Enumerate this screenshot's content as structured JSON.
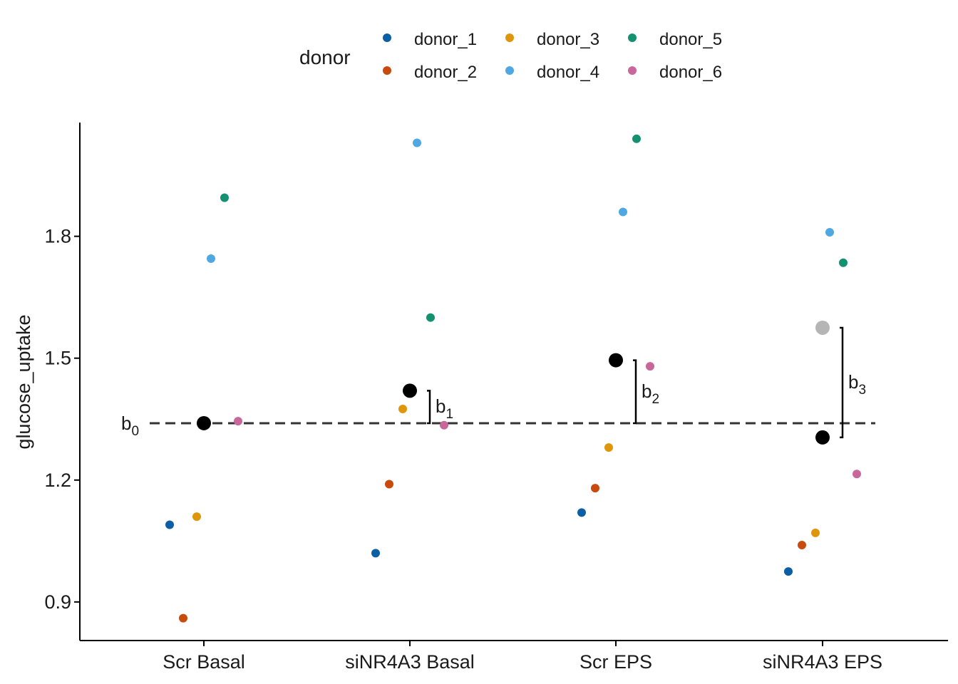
{
  "chart_data": {
    "type": "scatter",
    "title": "",
    "xlabel": "",
    "ylabel": "glucose_uptake",
    "ylim": [
      0.805,
      2.08
    ],
    "yticks": [
      0.9,
      1.2,
      1.5,
      1.8
    ],
    "ytick_labels": [
      "0.9",
      "1.2",
      "1.5",
      "1.8"
    ],
    "categories": [
      "Scr Basal",
      "siNR4A3 Basal",
      "Scr EPS",
      "siNR4A3 EPS"
    ],
    "grid": false,
    "legend": {
      "title": "donor",
      "position": "top"
    },
    "series": [
      {
        "name": "donor_1",
        "color": "#0b5fa5",
        "values": [
          1.09,
          1.02,
          1.12,
          0.975
        ]
      },
      {
        "name": "donor_2",
        "color": "#c84a0c",
        "values": [
          0.86,
          1.19,
          1.18,
          1.04
        ]
      },
      {
        "name": "donor_3",
        "color": "#e0960a",
        "values": [
          1.11,
          1.375,
          1.28,
          1.07
        ]
      },
      {
        "name": "donor_4",
        "color": "#4fa8e2",
        "values": [
          1.745,
          2.03,
          1.86,
          1.81
        ]
      },
      {
        "name": "donor_5",
        "color": "#139170",
        "values": [
          1.895,
          1.6,
          2.04,
          1.735
        ]
      },
      {
        "name": "donor_6",
        "color": "#c7679a",
        "values": [
          1.345,
          1.335,
          1.48,
          1.215
        ]
      }
    ],
    "group_means": {
      "values": [
        1.34,
        1.42,
        1.495,
        1.305
      ],
      "color": "#000000"
    },
    "additive_prediction": {
      "value": 1.575,
      "category": "siNR4A3 EPS",
      "color": "#b5b5b5"
    },
    "reference_line": {
      "value": 1.34,
      "style": "dashed",
      "label": "b",
      "sub": "0"
    },
    "annotations": [
      {
        "category": "siNR4A3 Basal",
        "from": 1.34,
        "to": 1.42,
        "label": "b",
        "sub": "1"
      },
      {
        "category": "Scr EPS",
        "from": 1.34,
        "to": 1.495,
        "label": "b",
        "sub": "2"
      },
      {
        "category": "siNR4A3 EPS",
        "from": 1.305,
        "to": 1.575,
        "label": "b",
        "sub": "3"
      }
    ]
  }
}
